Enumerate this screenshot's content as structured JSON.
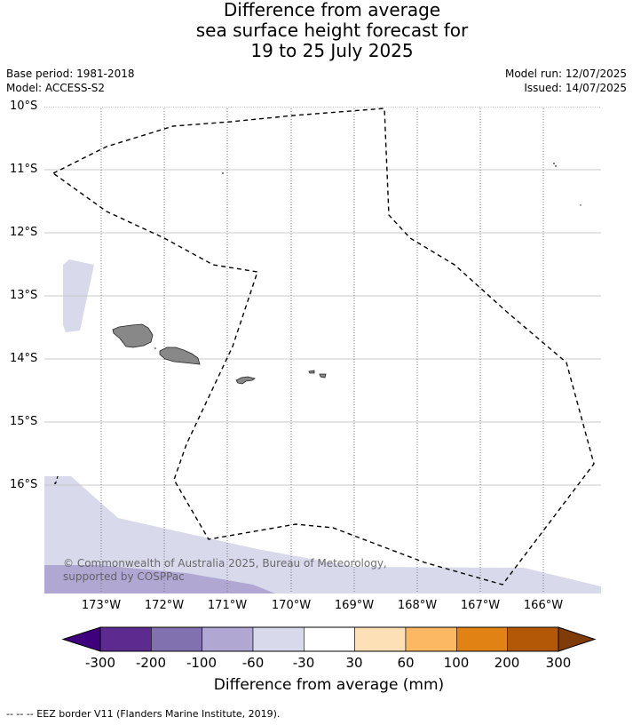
{
  "title_lines": [
    "Difference from average",
    "sea surface height forecast for",
    "19 to 25 July 2025"
  ],
  "base_period": "Base period: 1981-2018",
  "model": "Model: ACCESS-S2",
  "model_run": "Model run: 12/07/2025",
  "issued": "Issued: 14/07/2025",
  "lat_labels": [
    "10°S",
    "11°S",
    "12°S",
    "13°S",
    "14°S",
    "15°S",
    "16°S"
  ],
  "lon_labels": [
    "173°W",
    "172°W",
    "171°W",
    "170°W",
    "169°W",
    "168°W",
    "167°W",
    "166°W"
  ],
  "colorbar": {
    "ticks": [
      "-300",
      "-200",
      "-100",
      "-60",
      "-30",
      "30",
      "60",
      "100",
      "200",
      "300"
    ],
    "colors": [
      "#3f007d",
      "#5d2a8f",
      "#8171ae",
      "#b0a8d3",
      "#d9d9ec",
      "#ffffff",
      "#fee0b6",
      "#fdb863",
      "#e08214",
      "#b35806",
      "#7f3b08"
    ],
    "label": "Difference from average (mm)"
  },
  "copyright": "© Commonwealth of Australia 2025, Bureau of Meteorology, supported by COSPPac",
  "footer": "-- -- -- EEZ border V11 (Flanders Marine Institute, 2019)."
}
